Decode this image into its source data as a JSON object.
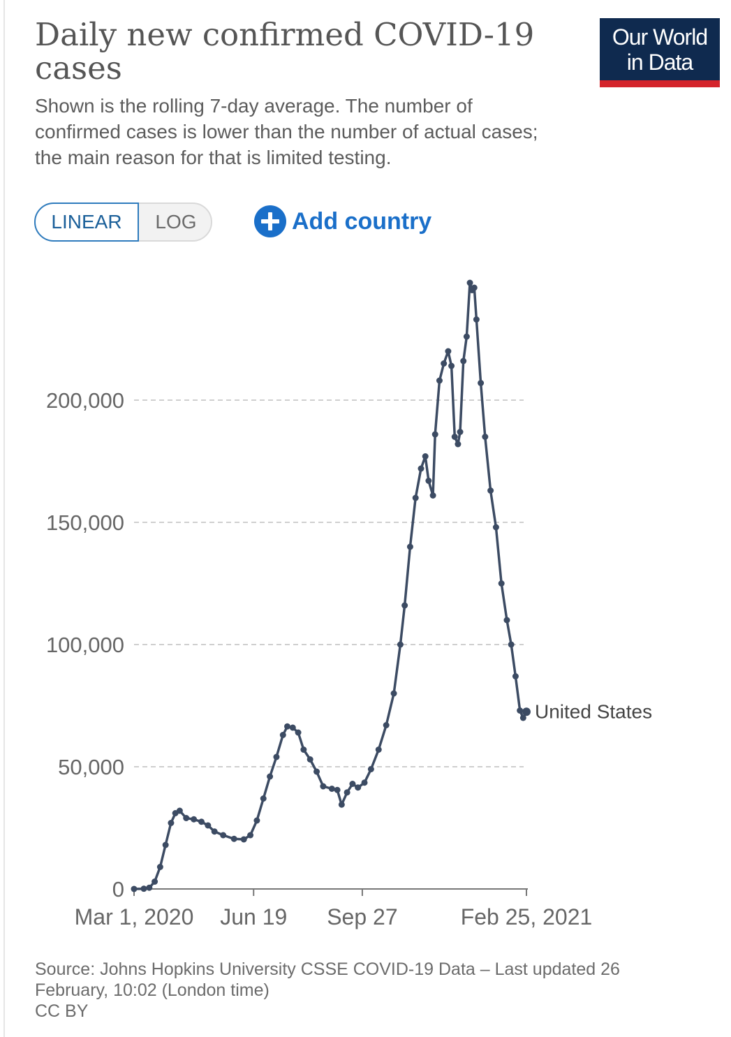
{
  "header": {
    "title": "Daily new confirmed COVID-19 cases",
    "subtitle": "Shown is the rolling 7-day average. The number of confirmed cases is lower than the number of actual cases; the main reason for that is limited testing."
  },
  "logo": {
    "line1": "Our World",
    "line2": "in Data"
  },
  "controls": {
    "linear_label": "LINEAR",
    "log_label": "LOG",
    "add_country_label": "Add country"
  },
  "footer": {
    "source": "Source: Johns Hopkins University CSSE COVID-19 Data – Last updated 26 February, 10:02 (London time)",
    "license": "CC BY"
  },
  "colors": {
    "line": "#3c4b63",
    "grid": "#cfcfcf",
    "axis": "#666666",
    "brand": "#0f2a4f",
    "accent": "#d4242b",
    "link": "#1a6fc9"
  },
  "chart_data": {
    "type": "line",
    "title": "Daily new confirmed COVID-19 cases",
    "xlabel": "",
    "ylabel": "",
    "ylim": [
      0,
      250000
    ],
    "yticks": [
      0,
      50000,
      100000,
      150000,
      200000
    ],
    "ytick_labels": [
      "0",
      "50,000",
      "100,000",
      "150,000",
      "200,000"
    ],
    "xticks": [
      "2020-03-01",
      "2020-06-19",
      "2020-09-27",
      "2021-02-25"
    ],
    "xtick_labels": [
      "Mar 1, 2020",
      "Jun 19",
      "Sep 27",
      "Feb 25, 2021"
    ],
    "grid": true,
    "series": [
      {
        "name": "United States",
        "points": [
          [
            "2020-03-01",
            0
          ],
          [
            "2020-03-10",
            100
          ],
          [
            "2020-03-15",
            500
          ],
          [
            "2020-03-20",
            3000
          ],
          [
            "2020-03-25",
            9000
          ],
          [
            "2020-03-30",
            18000
          ],
          [
            "2020-04-04",
            27000
          ],
          [
            "2020-04-08",
            31000
          ],
          [
            "2020-04-12",
            32000
          ],
          [
            "2020-04-18",
            29000
          ],
          [
            "2020-04-25",
            28500
          ],
          [
            "2020-05-02",
            27500
          ],
          [
            "2020-05-08",
            26000
          ],
          [
            "2020-05-14",
            23500
          ],
          [
            "2020-05-22",
            22000
          ],
          [
            "2020-06-01",
            20500
          ],
          [
            "2020-06-10",
            20300
          ],
          [
            "2020-06-16",
            22000
          ],
          [
            "2020-06-22",
            28000
          ],
          [
            "2020-06-28",
            37000
          ],
          [
            "2020-07-04",
            46000
          ],
          [
            "2020-07-10",
            54000
          ],
          [
            "2020-07-16",
            63000
          ],
          [
            "2020-07-20",
            66500
          ],
          [
            "2020-07-25",
            66000
          ],
          [
            "2020-07-30",
            64000
          ],
          [
            "2020-08-04",
            57000
          ],
          [
            "2020-08-10",
            53000
          ],
          [
            "2020-08-16",
            48000
          ],
          [
            "2020-08-22",
            42000
          ],
          [
            "2020-08-30",
            41000
          ],
          [
            "2020-09-04",
            40500
          ],
          [
            "2020-09-08",
            34500
          ],
          [
            "2020-09-13",
            39500
          ],
          [
            "2020-09-18",
            43000
          ],
          [
            "2020-09-23",
            41500
          ],
          [
            "2020-09-29",
            43500
          ],
          [
            "2020-10-05",
            49000
          ],
          [
            "2020-10-12",
            57000
          ],
          [
            "2020-10-19",
            67000
          ],
          [
            "2020-10-26",
            80000
          ],
          [
            "2020-11-01",
            100000
          ],
          [
            "2020-11-05",
            116000
          ],
          [
            "2020-11-10",
            140000
          ],
          [
            "2020-11-15",
            160000
          ],
          [
            "2020-11-20",
            172000
          ],
          [
            "2020-11-24",
            177000
          ],
          [
            "2020-11-27",
            167000
          ],
          [
            "2020-12-01",
            161000
          ],
          [
            "2020-12-03",
            186000
          ],
          [
            "2020-12-07",
            208000
          ],
          [
            "2020-12-11",
            215000
          ],
          [
            "2020-12-15",
            220000
          ],
          [
            "2020-12-18",
            214000
          ],
          [
            "2020-12-21",
            185000
          ],
          [
            "2020-12-24",
            182000
          ],
          [
            "2020-12-26",
            187000
          ],
          [
            "2020-12-29",
            216000
          ],
          [
            "2021-01-01",
            226000
          ],
          [
            "2021-01-04",
            248000
          ],
          [
            "2021-01-06",
            245000
          ],
          [
            "2021-01-08",
            246000
          ],
          [
            "2021-01-10",
            233000
          ],
          [
            "2021-01-14",
            207000
          ],
          [
            "2021-01-18",
            185000
          ],
          [
            "2021-01-23",
            163000
          ],
          [
            "2021-01-28",
            148000
          ],
          [
            "2021-02-02",
            125000
          ],
          [
            "2021-02-07",
            110000
          ],
          [
            "2021-02-11",
            100000
          ],
          [
            "2021-02-15",
            87000
          ],
          [
            "2021-02-19",
            73000
          ],
          [
            "2021-02-22",
            70000
          ],
          [
            "2021-02-25",
            72500
          ]
        ]
      }
    ],
    "series_label": "United States"
  }
}
